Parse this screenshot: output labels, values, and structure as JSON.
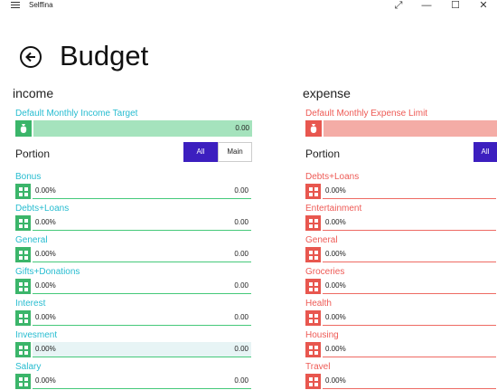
{
  "window": {
    "app_name": "Selffina",
    "restore_glyph": "⤢",
    "minimize_glyph": "—",
    "maximize_glyph": "☐",
    "close_glyph": "✕"
  },
  "header": {
    "title": "Budget"
  },
  "colors": {
    "income_accent": "#26bcd0",
    "income_line": "#45c97a",
    "income_icon_bg": "#3bb56a",
    "income_bar": "#a5e3bd",
    "expense_accent": "#ee5a55",
    "expense_line": "#ee6a63",
    "expense_icon_bg": "#e8574f",
    "expense_bar": "#f4aca6",
    "toggle_active": "#3c1fbf"
  },
  "income": {
    "title": "income",
    "target_label": "Default Monthly Income Target",
    "target_value": "0.00",
    "portion_label": "Portion",
    "toggle_all": "All",
    "toggle_main": "Main",
    "categories": [
      {
        "name": "Bonus",
        "percent": "0.00%",
        "amount": "0.00"
      },
      {
        "name": "Debts+Loans",
        "percent": "0.00%",
        "amount": "0.00"
      },
      {
        "name": "General",
        "percent": "0.00%",
        "amount": "0.00"
      },
      {
        "name": "Gifts+Donations",
        "percent": "0.00%",
        "amount": "0.00"
      },
      {
        "name": "Interest",
        "percent": "0.00%",
        "amount": "0.00"
      },
      {
        "name": "Invesment",
        "percent": "0.00%",
        "amount": "0.00"
      },
      {
        "name": "Salary",
        "percent": "0.00%",
        "amount": "0.00"
      }
    ]
  },
  "expense": {
    "title": "expense",
    "target_label": "Default Monthly Expense Limit",
    "target_value": "",
    "portion_label": "Portion",
    "toggle_all": "All",
    "categories": [
      {
        "name": "Debts+Loans",
        "percent": "0.00%"
      },
      {
        "name": "Entertainment",
        "percent": "0.00%"
      },
      {
        "name": "General",
        "percent": "0.00%"
      },
      {
        "name": "Groceries",
        "percent": "0.00%"
      },
      {
        "name": "Health",
        "percent": "0.00%"
      },
      {
        "name": "Housing",
        "percent": "0.00%"
      },
      {
        "name": "Travel",
        "percent": "0.00%"
      }
    ]
  }
}
